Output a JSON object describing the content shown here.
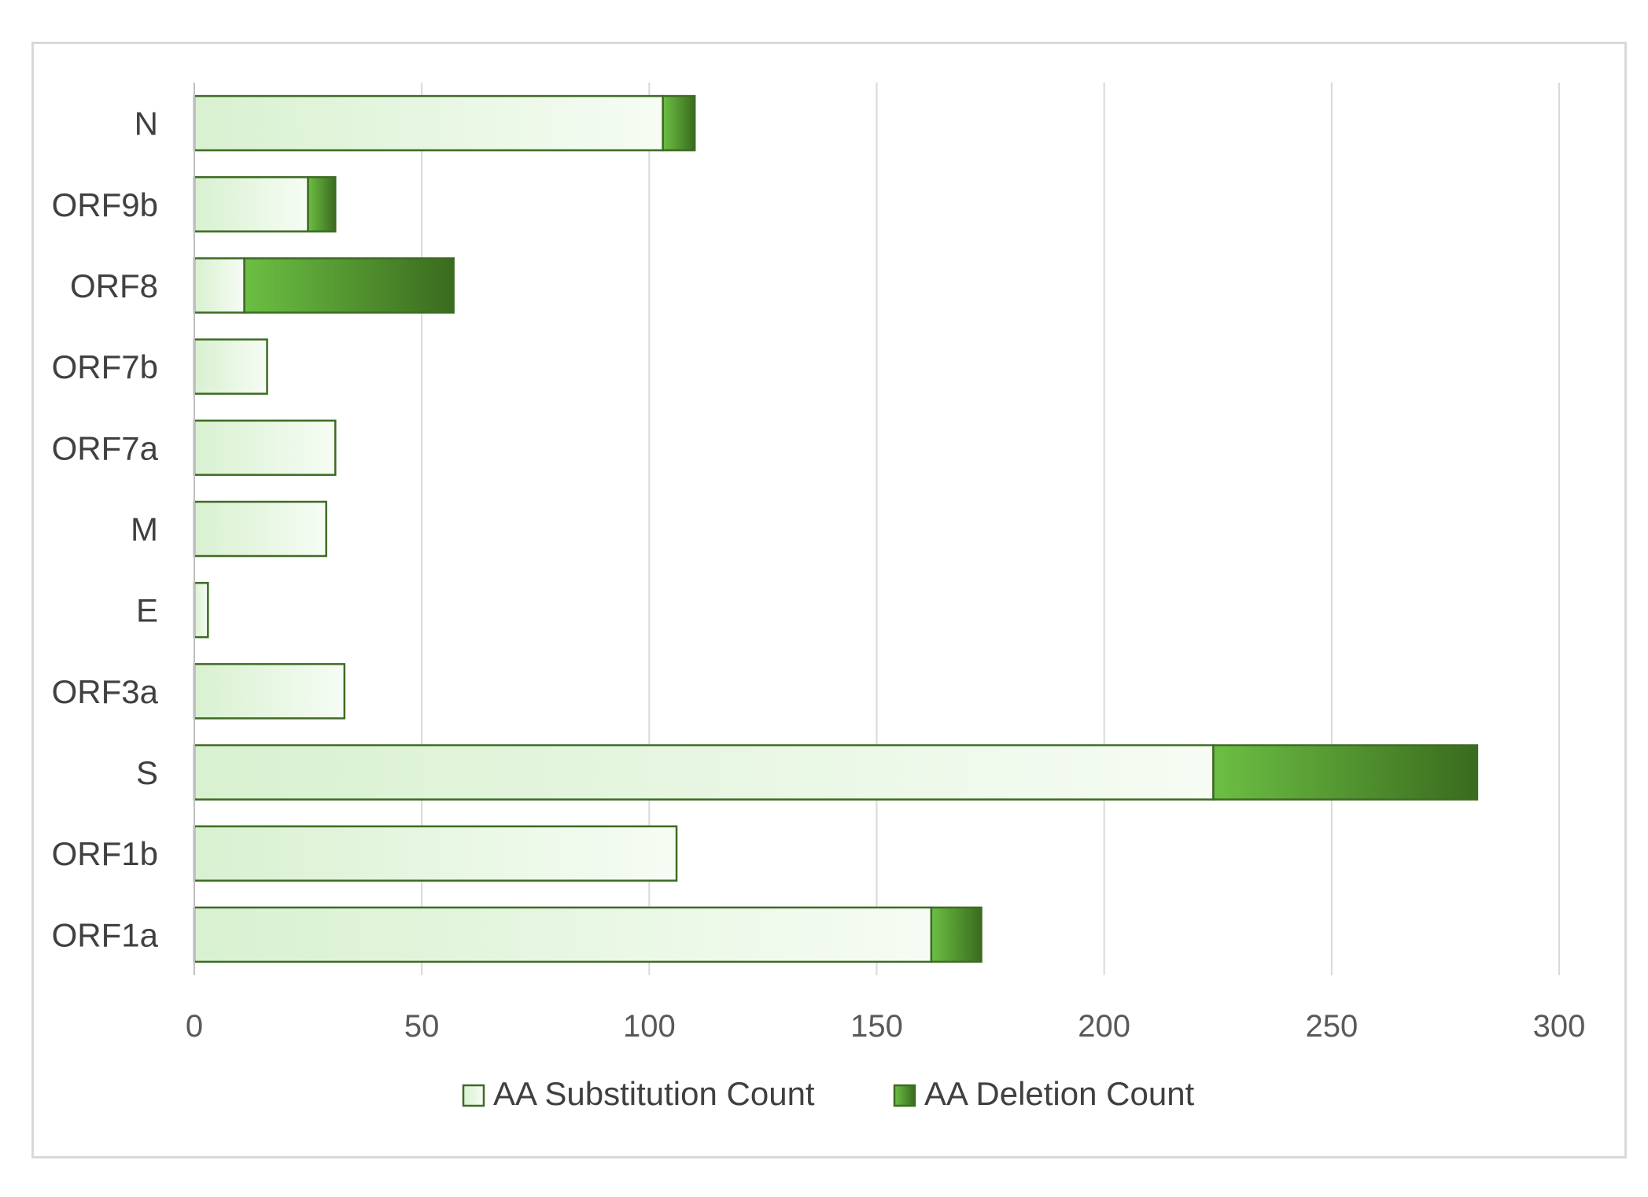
{
  "chart_data": {
    "type": "bar",
    "orientation": "horizontal",
    "stacked": true,
    "title": "",
    "xlabel": "",
    "ylabel": "",
    "categories": [
      "ORF1a",
      "ORF1b",
      "S",
      "ORF3a",
      "E",
      "M",
      "ORF7a",
      "ORF7b",
      "ORF8",
      "ORF9b",
      "N"
    ],
    "series": [
      {
        "name": "AA Substitution Count",
        "values": [
          162,
          106,
          224,
          33,
          3,
          29,
          31,
          16,
          11,
          25,
          103
        ],
        "color": "#e2f5dc"
      },
      {
        "name": "AA Deletion Count",
        "values": [
          11,
          0,
          58,
          0,
          0,
          0,
          0,
          0,
          46,
          6,
          7
        ],
        "color": "#4f9a2a"
      }
    ],
    "xlim": [
      0,
      300
    ],
    "xticks": [
      "0",
      "50",
      "100",
      "150",
      "200",
      "250",
      "300"
    ],
    "grid": true,
    "legend_position": "bottom"
  },
  "colors": {
    "bar_border": "#3e6b24",
    "grid": "#d9d9d9",
    "substitution_light": "#d8f1d0",
    "substitution_pale": "#f6fcf4",
    "deletion_light": "#6cbf43",
    "deletion_dark": "#3a6b1e"
  }
}
